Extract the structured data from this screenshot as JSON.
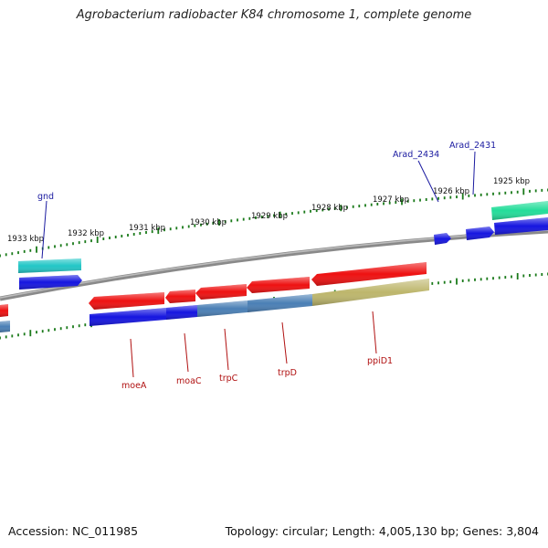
{
  "title": "Agrobacterium radiobacter K84 chromosome 1, complete genome",
  "footer": {
    "accession": "Accession: NC_011985",
    "topology": "Topology: circular; Length: 4,005,130 bp; Genes: 3,804"
  },
  "colors": {
    "tick": "#1a7a1a",
    "backbone": "#7a7a7a",
    "upper_label": "#1a1aa0",
    "lower_label": "#b01010",
    "red": "#ee1111",
    "blue": "#1515e0",
    "steel": "#4a7fb5",
    "olive": "#bdb66c",
    "cyan": "#22c6c6",
    "teal": "#22dd99"
  },
  "scale_labels": [
    "1933 kbp",
    "1932 kbp",
    "1931 kbp",
    "1930 kbp",
    "1929 kbp",
    "1928 kbp",
    "1927 kbp",
    "1926 kbp",
    "1925 kbp"
  ],
  "upper_gene_labels": [
    "gnd",
    "Arad_2434",
    "Arad_2431"
  ],
  "lower_gene_labels": [
    "moeA",
    "moaC",
    "trpC",
    "trpD",
    "ppiD1"
  ]
}
